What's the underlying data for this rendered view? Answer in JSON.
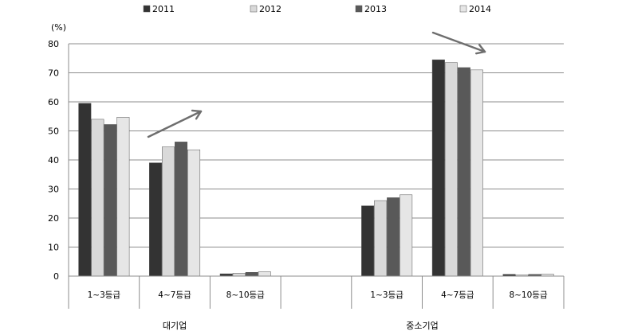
{
  "chart_data": {
    "type": "bar",
    "unit_label": "(%)",
    "ylim": [
      0,
      80
    ],
    "yticks": [
      0,
      10,
      20,
      30,
      40,
      50,
      60,
      70,
      80
    ],
    "grid": true,
    "legend_position": "top",
    "groups": [
      "대기업",
      "중소기업"
    ],
    "categories": [
      "1~3등급",
      "4~7등급",
      "8~10등급",
      "1~3등급",
      "4~7등급",
      "8~10등급"
    ],
    "series": [
      {
        "name": "2011",
        "color": "#333333",
        "values": [
          59.5,
          39,
          0.8,
          24.2,
          74.5,
          0.6
        ]
      },
      {
        "name": "2012",
        "color": "#d9d9d9",
        "values": [
          54,
          44.5,
          1.0,
          26,
          73.5,
          0.4
        ]
      },
      {
        "name": "2013",
        "color": "#595959",
        "values": [
          52.2,
          46.2,
          1.3,
          27,
          71.8,
          0.6
        ]
      },
      {
        "name": "2014",
        "color": "#e6e6e6",
        "values": [
          54.7,
          43.5,
          1.5,
          28,
          71,
          0.7
        ]
      }
    ],
    "annotations": [
      {
        "type": "trend-arrow",
        "target": "대기업 4~7등급",
        "direction": "up"
      },
      {
        "type": "trend-arrow",
        "target": "중소기업 4~7등급",
        "direction": "down"
      }
    ]
  }
}
